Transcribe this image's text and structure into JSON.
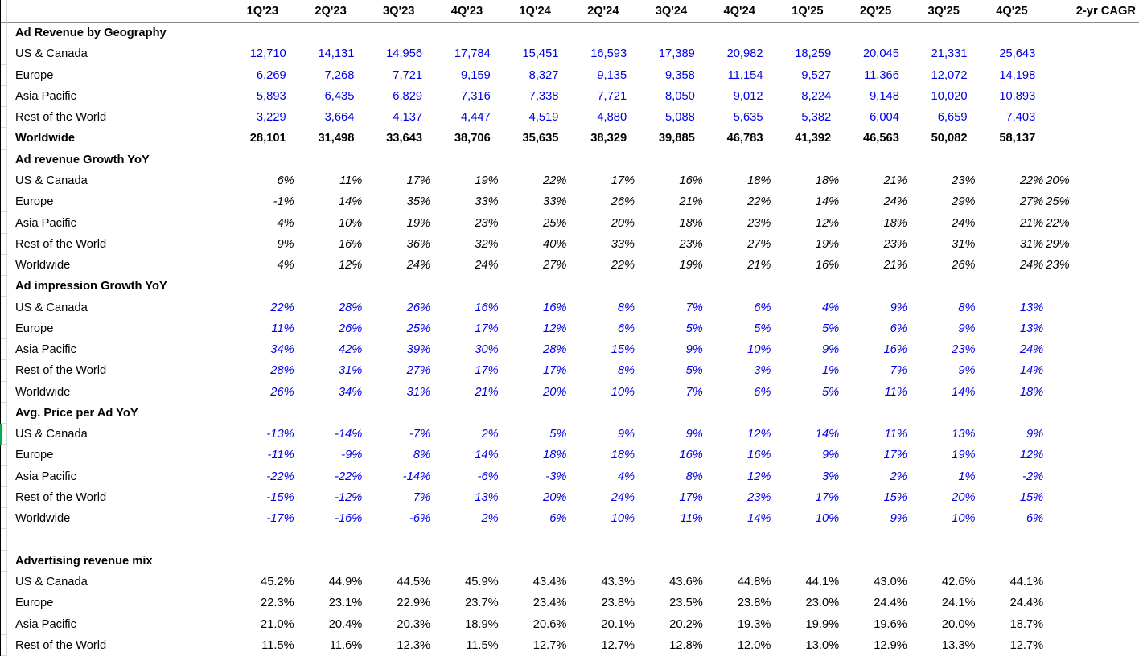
{
  "columns": [
    "1Q'23",
    "2Q'23",
    "3Q'23",
    "4Q'23",
    "1Q'24",
    "2Q'24",
    "3Q'24",
    "4Q'24",
    "1Q'25",
    "2Q'25",
    "3Q'25",
    "4Q'25",
    "2-yr CAGR"
  ],
  "colors": {
    "value_blue": "#0000e6",
    "divider_black": "#000000",
    "gridline_gray": "#d9d9d9",
    "header_rule_gray": "#8a8a8a",
    "marker_green": "#00b050"
  },
  "sections": [
    {
      "title": "Ad Revenue by Geography",
      "value_style": "blue-number",
      "rows": [
        {
          "label": "US & Canada",
          "values": [
            "12,710",
            "14,131",
            "14,956",
            "17,784",
            "15,451",
            "16,593",
            "17,389",
            "20,982",
            "18,259",
            "20,045",
            "21,331",
            "25,643"
          ],
          "cagr": ""
        },
        {
          "label": "Europe",
          "values": [
            "6,269",
            "7,268",
            "7,721",
            "9,159",
            "8,327",
            "9,135",
            "9,358",
            "11,154",
            "9,527",
            "11,366",
            "12,072",
            "14,198"
          ],
          "cagr": ""
        },
        {
          "label": "Asia Pacific",
          "values": [
            "5,893",
            "6,435",
            "6,829",
            "7,316",
            "7,338",
            "7,721",
            "8,050",
            "9,012",
            "8,224",
            "9,148",
            "10,020",
            "10,893"
          ],
          "cagr": ""
        },
        {
          "label": "Rest of the World",
          "values": [
            "3,229",
            "3,664",
            "4,137",
            "4,447",
            "4,519",
            "4,880",
            "5,088",
            "5,635",
            "5,382",
            "6,004",
            "6,659",
            "7,403"
          ],
          "cagr": ""
        },
        {
          "label": "Worldwide",
          "bold": true,
          "values": [
            "28,101",
            "31,498",
            "33,643",
            "38,706",
            "35,635",
            "38,329",
            "39,885",
            "46,783",
            "41,392",
            "46,563",
            "50,082",
            "58,137"
          ],
          "cagr": ""
        }
      ]
    },
    {
      "title": "Ad revenue Growth YoY",
      "value_style": "black-italic-pct",
      "rows": [
        {
          "label": "US & Canada",
          "values": [
            "6%",
            "11%",
            "17%",
            "19%",
            "22%",
            "17%",
            "16%",
            "18%",
            "18%",
            "21%",
            "23%",
            "22%"
          ],
          "cagr": "20%"
        },
        {
          "label": "Europe",
          "values": [
            "-1%",
            "14%",
            "35%",
            "33%",
            "33%",
            "26%",
            "21%",
            "22%",
            "14%",
            "24%",
            "29%",
            "27%"
          ],
          "cagr": "25%"
        },
        {
          "label": "Asia Pacific",
          "values": [
            "4%",
            "10%",
            "19%",
            "23%",
            "25%",
            "20%",
            "18%",
            "23%",
            "12%",
            "18%",
            "24%",
            "21%"
          ],
          "cagr": "22%"
        },
        {
          "label": "Rest of the World",
          "values": [
            "9%",
            "16%",
            "36%",
            "32%",
            "40%",
            "33%",
            "23%",
            "27%",
            "19%",
            "23%",
            "31%",
            "31%"
          ],
          "cagr": "29%"
        },
        {
          "label": "Worldwide",
          "values": [
            "4%",
            "12%",
            "24%",
            "24%",
            "27%",
            "22%",
            "19%",
            "21%",
            "16%",
            "21%",
            "26%",
            "24%"
          ],
          "cagr": "23%"
        }
      ]
    },
    {
      "title": "Ad impression Growth YoY",
      "value_style": "blue-italic-pct",
      "rows": [
        {
          "label": "US & Canada",
          "values": [
            "22%",
            "28%",
            "26%",
            "16%",
            "16%",
            "8%",
            "7%",
            "6%",
            "4%",
            "9%",
            "8%",
            "13%"
          ],
          "cagr": ""
        },
        {
          "label": "Europe",
          "values": [
            "11%",
            "26%",
            "25%",
            "17%",
            "12%",
            "6%",
            "5%",
            "5%",
            "5%",
            "6%",
            "9%",
            "13%"
          ],
          "cagr": ""
        },
        {
          "label": "Asia Pacific",
          "values": [
            "34%",
            "42%",
            "39%",
            "30%",
            "28%",
            "15%",
            "9%",
            "10%",
            "9%",
            "16%",
            "23%",
            "24%"
          ],
          "cagr": ""
        },
        {
          "label": "Rest of the World",
          "values": [
            "28%",
            "31%",
            "27%",
            "17%",
            "17%",
            "8%",
            "5%",
            "3%",
            "1%",
            "7%",
            "9%",
            "14%"
          ],
          "cagr": ""
        },
        {
          "label": "Worldwide",
          "values": [
            "26%",
            "34%",
            "31%",
            "21%",
            "20%",
            "10%",
            "7%",
            "6%",
            "5%",
            "11%",
            "14%",
            "18%"
          ],
          "cagr": ""
        }
      ]
    },
    {
      "title": "Avg. Price per Ad YoY",
      "value_style": "blue-italic-pct",
      "rows": [
        {
          "label": "US & Canada",
          "values": [
            "-13%",
            "-14%",
            "-7%",
            "2%",
            "5%",
            "9%",
            "9%",
            "12%",
            "14%",
            "11%",
            "13%",
            "9%"
          ],
          "cagr": ""
        },
        {
          "label": "Europe",
          "values": [
            "-11%",
            "-9%",
            "8%",
            "14%",
            "18%",
            "18%",
            "16%",
            "16%",
            "9%",
            "17%",
            "19%",
            "12%"
          ],
          "cagr": ""
        },
        {
          "label": "Asia Pacific",
          "values": [
            "-22%",
            "-22%",
            "-14%",
            "-6%",
            "-3%",
            "4%",
            "8%",
            "12%",
            "3%",
            "2%",
            "1%",
            "-2%"
          ],
          "cagr": ""
        },
        {
          "label": "Rest of the World",
          "values": [
            "-15%",
            "-12%",
            "7%",
            "13%",
            "20%",
            "24%",
            "17%",
            "23%",
            "17%",
            "15%",
            "20%",
            "15%"
          ],
          "cagr": ""
        },
        {
          "label": "Worldwide",
          "values": [
            "-17%",
            "-16%",
            "-6%",
            "2%",
            "6%",
            "10%",
            "11%",
            "14%",
            "10%",
            "9%",
            "10%",
            "6%"
          ],
          "cagr": ""
        }
      ]
    },
    {
      "spacer": true
    },
    {
      "title": "Advertising revenue mix",
      "value_style": "black-pct",
      "rows": [
        {
          "label": "US & Canada",
          "values": [
            "45.2%",
            "44.9%",
            "44.5%",
            "45.9%",
            "43.4%",
            "43.3%",
            "43.6%",
            "44.8%",
            "44.1%",
            "43.0%",
            "42.6%",
            "44.1%"
          ],
          "cagr": ""
        },
        {
          "label": "Europe",
          "values": [
            "22.3%",
            "23.1%",
            "22.9%",
            "23.7%",
            "23.4%",
            "23.8%",
            "23.5%",
            "23.8%",
            "23.0%",
            "24.4%",
            "24.1%",
            "24.4%"
          ],
          "cagr": ""
        },
        {
          "label": "Asia Pacific",
          "values": [
            "21.0%",
            "20.4%",
            "20.3%",
            "18.9%",
            "20.6%",
            "20.1%",
            "20.2%",
            "19.3%",
            "19.9%",
            "19.6%",
            "20.0%",
            "18.7%"
          ],
          "cagr": ""
        },
        {
          "label": "Rest of the World",
          "values": [
            "11.5%",
            "11.6%",
            "12.3%",
            "11.5%",
            "12.7%",
            "12.7%",
            "12.8%",
            "12.0%",
            "13.0%",
            "12.9%",
            "13.3%",
            "12.7%"
          ],
          "cagr": ""
        }
      ]
    }
  ],
  "selection_marker": {
    "row_label": "US & Canada",
    "section": "Avg. Price per Ad YoY"
  }
}
